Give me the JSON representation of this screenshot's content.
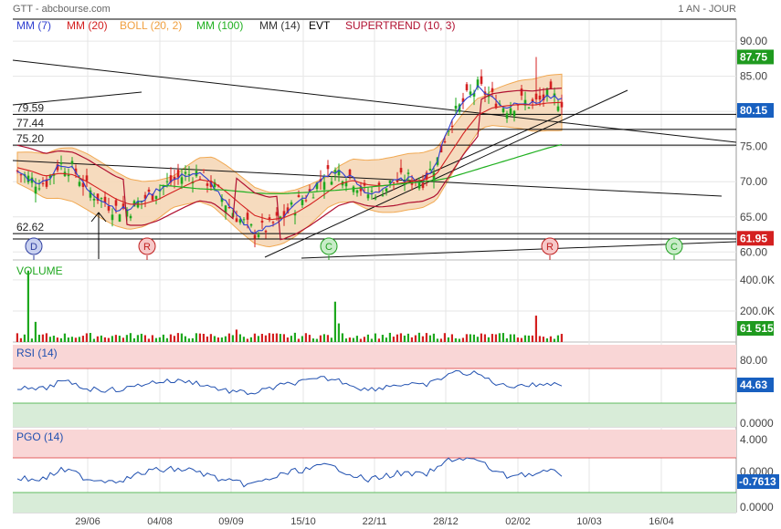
{
  "header": {
    "title": "GTT - abcbourse.com",
    "period": "1 AN - JOUR"
  },
  "legend": [
    {
      "label": "MM (7)",
      "color": "#2f3fd0"
    },
    {
      "label": "MM (20)",
      "color": "#d32020"
    },
    {
      "label": "BOLL (20, 2)",
      "color": "#f0a040"
    },
    {
      "label": "MM (100)",
      "color": "#20b020"
    },
    {
      "label": "MM (14)",
      "color": "#333333"
    },
    {
      "label": "EVT",
      "color": "#000000"
    },
    {
      "label": "SUPERTREND (10, 3)",
      "color": "#b01030"
    }
  ],
  "price_axis": {
    "ticks": [
      "90.00",
      "85.00",
      "80.00",
      "75.00",
      "70.00",
      "65.00",
      "60.00"
    ]
  },
  "price_badges": [
    {
      "value": "87.75",
      "color": "#1f9a1f"
    },
    {
      "value": "80.15",
      "color": "#1860c0"
    },
    {
      "value": "61.95",
      "color": "#d42020"
    }
  ],
  "levels": [
    "79.59",
    "77.44",
    "75.20",
    "62.62"
  ],
  "events": [
    {
      "letter": "D",
      "type": "dividend"
    },
    {
      "letter": "R",
      "type": "r"
    },
    {
      "letter": "C",
      "type": "c"
    },
    {
      "letter": "R",
      "type": "r"
    },
    {
      "letter": "C",
      "type": "c"
    }
  ],
  "volume": {
    "title": "VOLUME",
    "ticks": [
      "400.0K",
      "200.0K"
    ],
    "badge": "61 515"
  },
  "rsi": {
    "title": "RSI (14)",
    "ticks": [
      "80.00",
      "0.0000"
    ],
    "badge": "44.63"
  },
  "pgo": {
    "title": "PGO (14)",
    "ticks": [
      "4.000",
      "0.0000",
      "0.0000"
    ],
    "badge": "-0.7613"
  },
  "x_axis": {
    "ticks": [
      "29/06",
      "04/08",
      "09/09",
      "15/10",
      "22/11",
      "28/12",
      "02/02",
      "10/03",
      "16/04"
    ]
  },
  "colors": {
    "up": "#1fa81f",
    "down": "#d42020",
    "band": "#f6d8b8",
    "overbought": "#f9d6d6",
    "oversold": "#d8ecd8"
  },
  "chart_data": {
    "type": "line",
    "series": [
      {
        "name": "MM (7)",
        "values": [
          71.5,
          70.2,
          69.8,
          72.6,
          71.8,
          69.0,
          67.5,
          66.2,
          66.0,
          67.5,
          68.8,
          70.0,
          71.0,
          71.2,
          69.5,
          66.8,
          64.5,
          62.8,
          63.5,
          65.0,
          66.8,
          68.5,
          70.8,
          71.5,
          70.5,
          68.2,
          68.8,
          70.0,
          70.4,
          70.2,
          72.5,
          78.5,
          81.5,
          83.5,
          82.0,
          80.5,
          81.5,
          81.0,
          82.2,
          81.5
        ]
      },
      {
        "name": "MM (20)",
        "values": [
          72.0,
          71.5,
          70.8,
          71.2,
          71.0,
          70.0,
          68.8,
          67.6,
          66.8,
          66.8,
          67.4,
          68.4,
          69.4,
          70.3,
          70.0,
          68.5,
          66.8,
          65.2,
          64.6,
          64.8,
          65.6,
          66.8,
          68.2,
          69.6,
          70.2,
          69.6,
          69.4,
          69.6,
          70.0,
          70.2,
          71.0,
          74.0,
          77.0,
          79.5,
          80.5,
          80.8,
          81.0,
          80.9,
          81.2,
          81.3
        ]
      },
      {
        "name": "MM (100)",
        "values": [
          null,
          null,
          null,
          null,
          null,
          null,
          null,
          null,
          null,
          null,
          69.5,
          69.4,
          69.2,
          69.0,
          68.9,
          68.8,
          68.6,
          68.4,
          68.3,
          68.3,
          68.4,
          68.5,
          68.7,
          68.8,
          69.0,
          69.2,
          69.4,
          69.6,
          69.8,
          70.0,
          70.2,
          70.6,
          71.2,
          71.8,
          72.4,
          73.0,
          73.6,
          74.2,
          74.8,
          75.3
        ]
      }
    ],
    "ylim": [
      59,
      93
    ]
  }
}
